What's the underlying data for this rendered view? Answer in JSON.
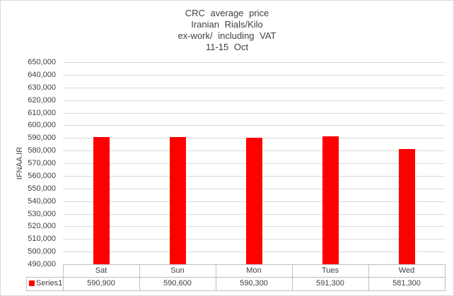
{
  "chart_data": {
    "type": "bar",
    "title_lines": [
      "CRC average price",
      "Iranian Rials/Kilo",
      "ex-work/ including VAT",
      "11-15 Oct"
    ],
    "ylabel": "IFNAA.IR",
    "categories": [
      "Sat",
      "Sun",
      "Mon",
      "Tues",
      "Wed"
    ],
    "series": [
      {
        "name": "Series1",
        "values": [
          590900,
          590600,
          590300,
          591300,
          581300
        ]
      }
    ],
    "value_labels": [
      "590,900",
      "590,600",
      "590,300",
      "591,300",
      "581,300"
    ],
    "ylim": [
      490000,
      650000
    ],
    "ytick_step": 10000,
    "ytick_labels": [
      "650,000",
      "640,000",
      "630,000",
      "620,000",
      "610,000",
      "600,000",
      "590,000",
      "580,000",
      "570,000",
      "560,000",
      "550,000",
      "540,000",
      "530,000",
      "520,000",
      "510,000",
      "500,000",
      "490,000"
    ],
    "grid": true,
    "legend_position": "bottom-table",
    "colors": {
      "bar": "#ff0000",
      "gridline": "#d9d9d9",
      "border": "#bfbfbf",
      "text": "#404040"
    }
  }
}
